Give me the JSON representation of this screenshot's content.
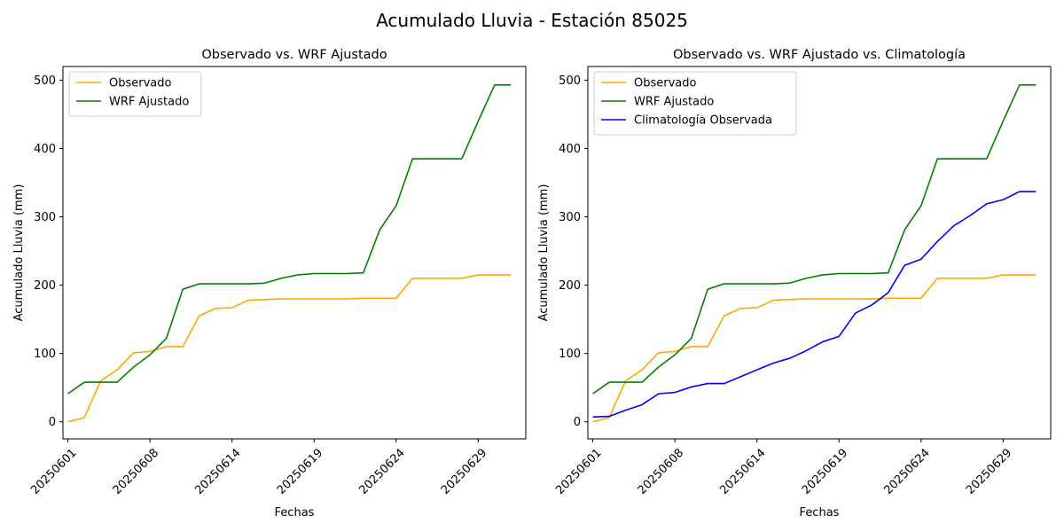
{
  "figure": {
    "suptitle": "Acumulado Lluvia - Estación 85025"
  },
  "chart_data": [
    {
      "type": "line",
      "title": "Observado vs. WRF Ajustado",
      "xlabel": "Fechas",
      "ylabel": "Acumulado Lluvia (mm)",
      "ylim": [
        -25,
        520
      ],
      "yticks": [
        0,
        100,
        200,
        300,
        400,
        500
      ],
      "xticks": [
        {
          "day": 1,
          "label": "20250601"
        },
        {
          "day": 6,
          "label": "20250608"
        },
        {
          "day": 11,
          "label": "20250614"
        },
        {
          "day": 16,
          "label": "20250619"
        },
        {
          "day": 21,
          "label": "20250624"
        },
        {
          "day": 26,
          "label": "20250629"
        }
      ],
      "xlim": [
        0.7,
        28.9
      ],
      "legend_position": "top-left",
      "grid": false,
      "series": [
        {
          "name": "Observado",
          "color": "#FFA500",
          "x": [
            1,
            2,
            3,
            4,
            5,
            6,
            7,
            8,
            9,
            10,
            11,
            12,
            13,
            14,
            15,
            16,
            17,
            18,
            19,
            20,
            21,
            22,
            23,
            24,
            25,
            26,
            27,
            28
          ],
          "values": [
            0,
            6,
            60,
            76,
            101,
            103,
            110,
            110,
            155,
            166,
            167,
            178,
            179,
            180,
            180,
            180,
            180,
            180,
            181,
            181,
            181,
            210,
            210,
            210,
            210,
            215,
            215,
            215
          ]
        },
        {
          "name": "WRF Ajustado",
          "color": "#008000",
          "x": [
            1,
            2,
            3,
            4,
            5,
            6,
            7,
            8,
            9,
            10,
            11,
            12,
            13,
            14,
            15,
            16,
            17,
            18,
            19,
            20,
            21,
            22,
            23,
            24,
            25,
            26,
            27,
            28
          ],
          "values": [
            41,
            58,
            58,
            58,
            80,
            98,
            122,
            194,
            202,
            202,
            202,
            202,
            203,
            210,
            215,
            217,
            217,
            217,
            218,
            281,
            316,
            385,
            385,
            385,
            385,
            440,
            493,
            493
          ]
        }
      ]
    },
    {
      "type": "line",
      "title": "Observado vs. WRF Ajustado vs. Climatología",
      "xlabel": "Fechas",
      "ylabel": "Acumulado Lluvia (mm)",
      "ylim": [
        -25,
        520
      ],
      "yticks": [
        0,
        100,
        200,
        300,
        400,
        500
      ],
      "xticks": [
        {
          "day": 1,
          "label": "20250601"
        },
        {
          "day": 6,
          "label": "20250608"
        },
        {
          "day": 11,
          "label": "20250614"
        },
        {
          "day": 16,
          "label": "20250619"
        },
        {
          "day": 21,
          "label": "20250624"
        },
        {
          "day": 26,
          "label": "20250629"
        }
      ],
      "xlim": [
        0.7,
        28.9
      ],
      "legend_position": "top-left",
      "grid": false,
      "series": [
        {
          "name": "Observado",
          "color": "#FFA500",
          "x": [
            1,
            2,
            3,
            4,
            5,
            6,
            7,
            8,
            9,
            10,
            11,
            12,
            13,
            14,
            15,
            16,
            17,
            18,
            19,
            20,
            21,
            22,
            23,
            24,
            25,
            26,
            27,
            28
          ],
          "values": [
            0,
            6,
            60,
            76,
            101,
            103,
            110,
            110,
            155,
            166,
            167,
            178,
            179,
            180,
            180,
            180,
            180,
            180,
            181,
            181,
            181,
            210,
            210,
            210,
            210,
            215,
            215,
            215
          ]
        },
        {
          "name": "WRF Ajustado",
          "color": "#008000",
          "x": [
            1,
            2,
            3,
            4,
            5,
            6,
            7,
            8,
            9,
            10,
            11,
            12,
            13,
            14,
            15,
            16,
            17,
            18,
            19,
            20,
            21,
            22,
            23,
            24,
            25,
            26,
            27,
            28
          ],
          "values": [
            41,
            58,
            58,
            58,
            80,
            98,
            122,
            194,
            202,
            202,
            202,
            202,
            203,
            210,
            215,
            217,
            217,
            217,
            218,
            281,
            316,
            385,
            385,
            385,
            385,
            440,
            493,
            493
          ]
        },
        {
          "name": "Climatología Observada",
          "color": "#0000FF",
          "x": [
            1,
            2,
            3,
            4,
            5,
            6,
            7,
            8,
            9,
            10,
            11,
            12,
            13,
            14,
            15,
            16,
            17,
            18,
            19,
            20,
            21,
            22,
            23,
            24,
            25,
            26,
            27,
            28
          ],
          "values": [
            7,
            8,
            17,
            25,
            41,
            43,
            51,
            56,
            56,
            66,
            76,
            86,
            93,
            104,
            117,
            125,
            159,
            171,
            189,
            229,
            238,
            264,
            287,
            302,
            319,
            325,
            337,
            337
          ]
        }
      ]
    }
  ]
}
